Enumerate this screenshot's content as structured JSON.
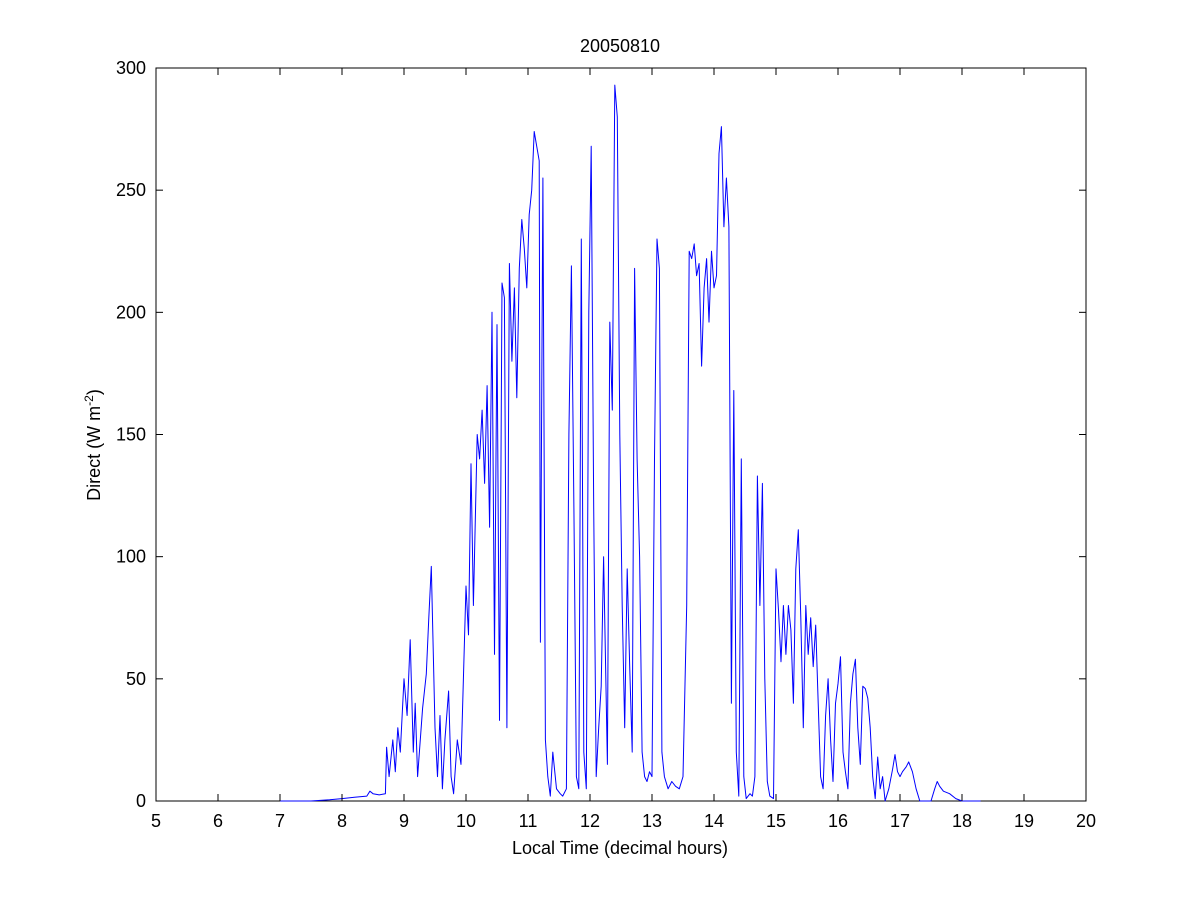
{
  "chart_data": {
    "type": "line",
    "title": "20050810",
    "xlabel": "Local Time (decimal hours)",
    "ylabel": {
      "main": "Direct (W m",
      "superscript": "-2",
      "suffix": ")"
    },
    "xlim": [
      5,
      20
    ],
    "ylim": [
      0,
      300
    ],
    "xticks": [
      5,
      6,
      7,
      8,
      9,
      10,
      11,
      12,
      13,
      14,
      15,
      16,
      17,
      18,
      19,
      20
    ],
    "yticks": [
      0,
      50,
      100,
      150,
      200,
      250,
      300
    ],
    "grid": false,
    "colors": {
      "line": "#0000ff",
      "axes": "#000000",
      "background": "#ffffff"
    },
    "series": [
      {
        "points": [
          [
            7.0,
            0
          ],
          [
            7.5,
            0
          ],
          [
            7.8,
            0.5
          ],
          [
            8.0,
            1
          ],
          [
            8.2,
            1.5
          ],
          [
            8.4,
            2
          ],
          [
            8.45,
            4
          ],
          [
            8.5,
            3
          ],
          [
            8.6,
            2.5
          ],
          [
            8.7,
            3
          ],
          [
            8.72,
            22
          ],
          [
            8.76,
            10
          ],
          [
            8.82,
            25
          ],
          [
            8.86,
            12
          ],
          [
            8.9,
            30
          ],
          [
            8.94,
            20
          ],
          [
            9.0,
            50
          ],
          [
            9.05,
            35
          ],
          [
            9.1,
            66
          ],
          [
            9.15,
            20
          ],
          [
            9.18,
            40
          ],
          [
            9.22,
            10
          ],
          [
            9.3,
            38
          ],
          [
            9.36,
            52
          ],
          [
            9.4,
            75
          ],
          [
            9.44,
            96
          ],
          [
            9.5,
            30
          ],
          [
            9.54,
            10
          ],
          [
            9.58,
            35
          ],
          [
            9.62,
            5
          ],
          [
            9.66,
            25
          ],
          [
            9.72,
            45
          ],
          [
            9.76,
            10
          ],
          [
            9.8,
            3
          ],
          [
            9.86,
            25
          ],
          [
            9.92,
            15
          ],
          [
            10.0,
            88
          ],
          [
            10.04,
            68
          ],
          [
            10.08,
            138
          ],
          [
            10.12,
            80
          ],
          [
            10.18,
            150
          ],
          [
            10.22,
            140
          ],
          [
            10.26,
            160
          ],
          [
            10.3,
            130
          ],
          [
            10.34,
            170
          ],
          [
            10.38,
            112
          ],
          [
            10.42,
            200
          ],
          [
            10.46,
            60
          ],
          [
            10.5,
            195
          ],
          [
            10.54,
            33
          ],
          [
            10.58,
            212
          ],
          [
            10.62,
            206
          ],
          [
            10.66,
            30
          ],
          [
            10.7,
            220
          ],
          [
            10.74,
            180
          ],
          [
            10.78,
            210
          ],
          [
            10.82,
            165
          ],
          [
            10.86,
            218
          ],
          [
            10.9,
            238
          ],
          [
            10.94,
            226
          ],
          [
            10.98,
            210
          ],
          [
            11.02,
            240
          ],
          [
            11.06,
            250
          ],
          [
            11.1,
            274
          ],
          [
            11.14,
            268
          ],
          [
            11.18,
            262
          ],
          [
            11.2,
            65
          ],
          [
            11.24,
            255
          ],
          [
            11.28,
            25
          ],
          [
            11.32,
            10
          ],
          [
            11.36,
            2
          ],
          [
            11.4,
            20
          ],
          [
            11.46,
            5
          ],
          [
            11.52,
            3
          ],
          [
            11.56,
            2
          ],
          [
            11.62,
            5
          ],
          [
            11.66,
            150
          ],
          [
            11.7,
            219
          ],
          [
            11.74,
            120
          ],
          [
            11.78,
            10
          ],
          [
            11.82,
            5
          ],
          [
            11.86,
            230
          ],
          [
            11.9,
            20
          ],
          [
            11.94,
            5
          ],
          [
            11.98,
            200
          ],
          [
            12.02,
            268
          ],
          [
            12.06,
            120
          ],
          [
            12.1,
            10
          ],
          [
            12.14,
            30
          ],
          [
            12.18,
            47
          ],
          [
            12.22,
            100
          ],
          [
            12.28,
            15
          ],
          [
            12.32,
            196
          ],
          [
            12.36,
            160
          ],
          [
            12.4,
            293
          ],
          [
            12.44,
            280
          ],
          [
            12.48,
            150
          ],
          [
            12.52,
            80
          ],
          [
            12.56,
            30
          ],
          [
            12.6,
            95
          ],
          [
            12.64,
            55
          ],
          [
            12.68,
            20
          ],
          [
            12.72,
            218
          ],
          [
            12.76,
            140
          ],
          [
            12.8,
            100
          ],
          [
            12.84,
            20
          ],
          [
            12.88,
            10
          ],
          [
            12.92,
            8
          ],
          [
            12.96,
            12
          ],
          [
            13.0,
            10
          ],
          [
            13.04,
            140
          ],
          [
            13.08,
            230
          ],
          [
            13.12,
            218
          ],
          [
            13.16,
            20
          ],
          [
            13.2,
            10
          ],
          [
            13.26,
            5
          ],
          [
            13.32,
            8
          ],
          [
            13.38,
            6
          ],
          [
            13.44,
            5
          ],
          [
            13.5,
            10
          ],
          [
            13.56,
            80
          ],
          [
            13.6,
            225
          ],
          [
            13.64,
            222
          ],
          [
            13.68,
            228
          ],
          [
            13.72,
            215
          ],
          [
            13.76,
            220
          ],
          [
            13.8,
            178
          ],
          [
            13.84,
            210
          ],
          [
            13.88,
            222
          ],
          [
            13.92,
            196
          ],
          [
            13.96,
            225
          ],
          [
            14.0,
            210
          ],
          [
            14.04,
            215
          ],
          [
            14.08,
            265
          ],
          [
            14.12,
            276
          ],
          [
            14.16,
            235
          ],
          [
            14.2,
            255
          ],
          [
            14.24,
            235
          ],
          [
            14.28,
            40
          ],
          [
            14.32,
            168
          ],
          [
            14.36,
            20
          ],
          [
            14.4,
            2
          ],
          [
            14.44,
            140
          ],
          [
            14.48,
            10
          ],
          [
            14.52,
            1
          ],
          [
            14.58,
            3
          ],
          [
            14.62,
            2
          ],
          [
            14.66,
            10
          ],
          [
            14.7,
            133
          ],
          [
            14.74,
            80
          ],
          [
            14.78,
            130
          ],
          [
            14.82,
            50
          ],
          [
            14.86,
            8
          ],
          [
            14.9,
            2
          ],
          [
            14.96,
            1
          ],
          [
            15.0,
            95
          ],
          [
            15.04,
            78
          ],
          [
            15.08,
            57
          ],
          [
            15.12,
            80
          ],
          [
            15.16,
            60
          ],
          [
            15.2,
            80
          ],
          [
            15.24,
            70
          ],
          [
            15.28,
            40
          ],
          [
            15.32,
            95
          ],
          [
            15.36,
            111
          ],
          [
            15.4,
            75
          ],
          [
            15.44,
            30
          ],
          [
            15.48,
            80
          ],
          [
            15.52,
            60
          ],
          [
            15.56,
            75
          ],
          [
            15.6,
            55
          ],
          [
            15.64,
            72
          ],
          [
            15.68,
            40
          ],
          [
            15.72,
            10
          ],
          [
            15.76,
            5
          ],
          [
            15.8,
            35
          ],
          [
            15.84,
            50
          ],
          [
            15.88,
            25
          ],
          [
            15.92,
            8
          ],
          [
            15.96,
            40
          ],
          [
            16.0,
            48
          ],
          [
            16.04,
            59
          ],
          [
            16.08,
            20
          ],
          [
            16.12,
            12
          ],
          [
            16.16,
            5
          ],
          [
            16.2,
            40
          ],
          [
            16.24,
            52
          ],
          [
            16.28,
            58
          ],
          [
            16.32,
            30
          ],
          [
            16.36,
            15
          ],
          [
            16.4,
            47
          ],
          [
            16.44,
            46
          ],
          [
            16.48,
            42
          ],
          [
            16.52,
            30
          ],
          [
            16.56,
            10
          ],
          [
            16.6,
            1
          ],
          [
            16.64,
            18
          ],
          [
            16.68,
            5
          ],
          [
            16.72,
            10
          ],
          [
            16.76,
            0
          ],
          [
            16.82,
            5
          ],
          [
            16.88,
            13
          ],
          [
            16.92,
            19
          ],
          [
            16.96,
            12
          ],
          [
            17.0,
            10
          ],
          [
            17.04,
            12
          ],
          [
            17.1,
            14
          ],
          [
            17.14,
            16
          ],
          [
            17.2,
            12
          ],
          [
            17.26,
            5
          ],
          [
            17.32,
            0
          ],
          [
            17.4,
            0
          ],
          [
            17.5,
            0
          ],
          [
            17.56,
            5
          ],
          [
            17.6,
            8
          ],
          [
            17.64,
            6
          ],
          [
            17.7,
            4
          ],
          [
            17.8,
            3
          ],
          [
            17.9,
            1
          ],
          [
            18.0,
            0
          ],
          [
            18.2,
            0
          ],
          [
            18.3,
            0
          ]
        ]
      }
    ]
  }
}
